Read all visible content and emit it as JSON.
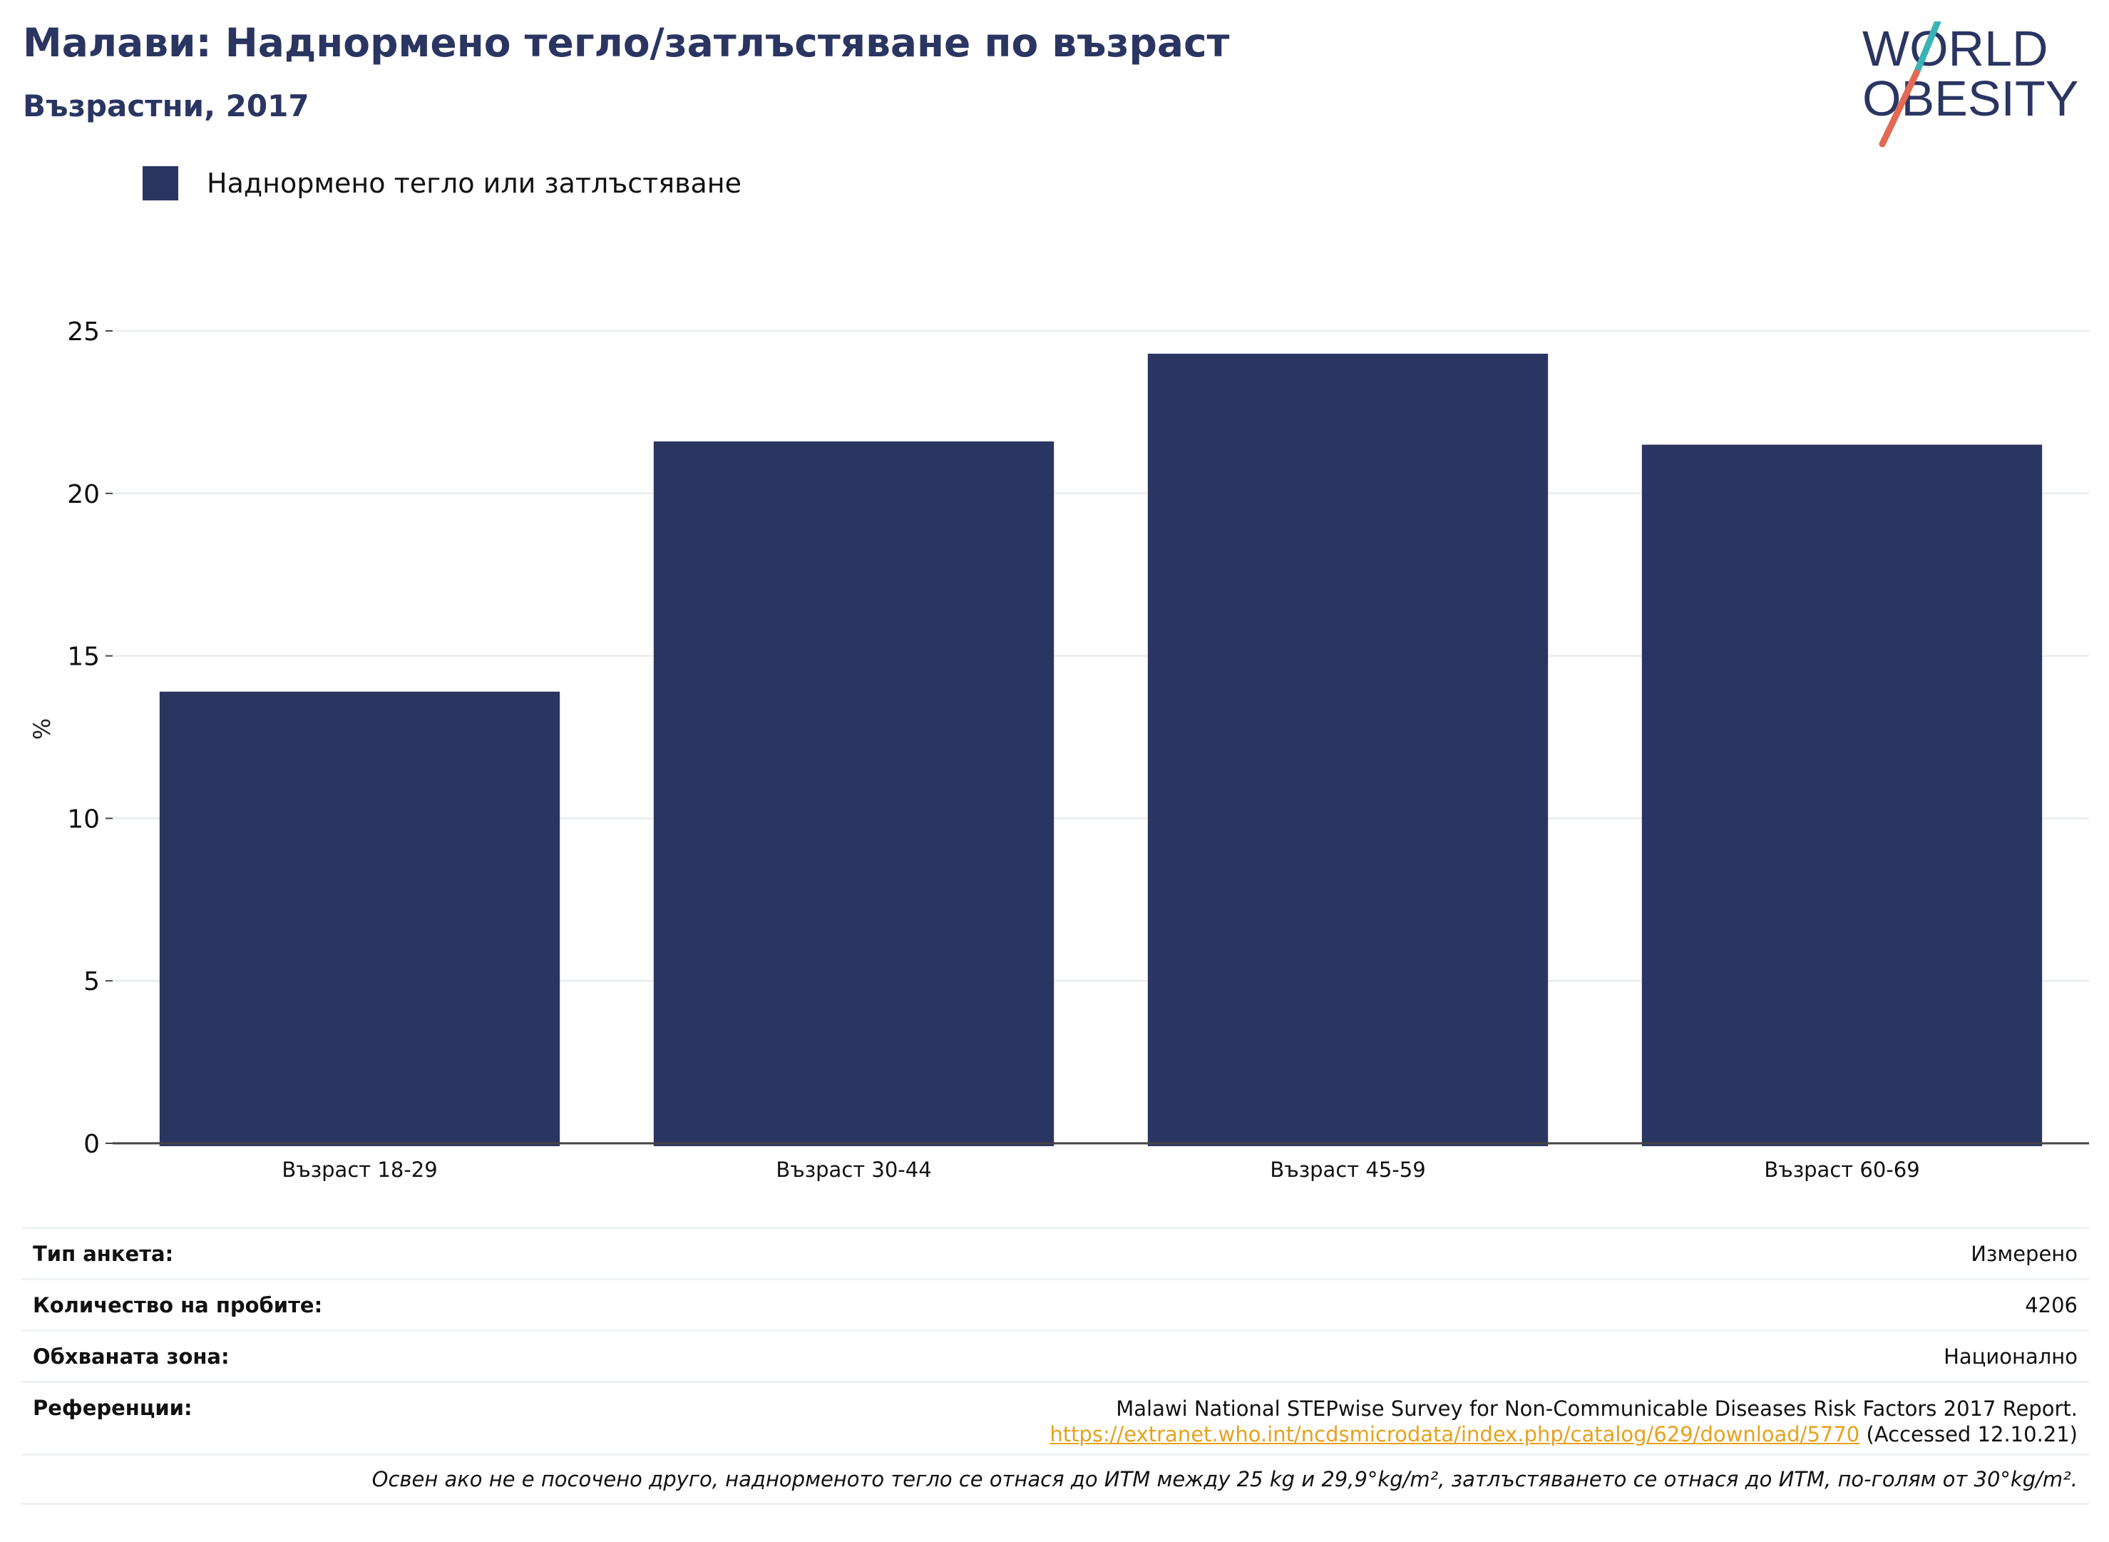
{
  "header": {
    "title": "Малави: Наднормено тегло/затлъстяване по възраст",
    "subtitle": "Възрастни, 2017"
  },
  "logo": {
    "line1": "WORLD",
    "line2": "OBESITY",
    "colors": {
      "text": "#2b3562",
      "slash_top": "#3bb3b5",
      "slash_bottom": "#e26a55"
    }
  },
  "legend": {
    "label": "Наднормено тегло или затлъстяване",
    "color": "#2b3562"
  },
  "chart_data": {
    "type": "bar",
    "categories": [
      "Възраст 18-29",
      "Възраст 30-44",
      "Възраст 45-59",
      "Възраст 60-69"
    ],
    "series": [
      {
        "name": "Наднормено тегло или затлъстяване",
        "values": [
          13.9,
          21.6,
          24.3,
          21.5
        ],
        "color": "#2b3562"
      }
    ],
    "ylabel": "%",
    "ylim": [
      0,
      25
    ],
    "yticks": [
      "0",
      "5",
      "10",
      "15",
      "20",
      "25"
    ],
    "grid": true
  },
  "info": {
    "survey_type": {
      "label": "Тип анкета:",
      "value": "Измерено"
    },
    "sample_size": {
      "label": "Количество на пробите:",
      "value": "4206"
    },
    "coverage": {
      "label": "Обхваната зона:",
      "value": "Национално"
    },
    "references": {
      "label": "Референции:",
      "line1": "Malawi National STEPwise Survey for Non-Communicable Diseases Risk Factors 2017 Report.",
      "link": "https://extranet.who.int/ncdsmicrodata/index.php/catalog/629/download/5770",
      "accessed": "(Accessed 12.10.21)"
    },
    "note": "Освен ако не е посочено друго, наднорменото тегло се отнася до ИТМ между 25 kg и 29,9°kg/m², затлъстяването се отнася до ИТМ, по-голям от 30°kg/m²."
  }
}
